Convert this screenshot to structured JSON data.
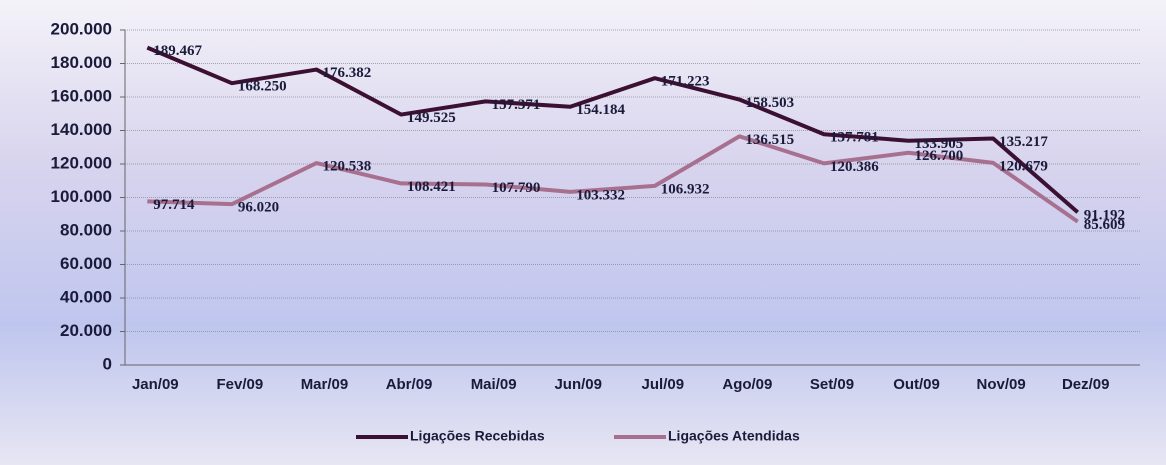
{
  "chart_data": {
    "type": "line",
    "categories": [
      "Jan/09",
      "Fev/09",
      "Mar/09",
      "Abr/09",
      "Mai/09",
      "Jun/09",
      "Jul/09",
      "Ago/09",
      "Set/09",
      "Out/09",
      "Nov/09",
      "Dez/09"
    ],
    "series": [
      {
        "name": "Ligações Recebidas",
        "color": "#3b1033",
        "values": [
          189467,
          168250,
          176382,
          149525,
          157371,
          154184,
          171223,
          158503,
          137781,
          133905,
          135217,
          91192
        ],
        "value_labels": [
          "189.467",
          "168.250",
          "176.382",
          "149.525",
          "157.371",
          "154.184",
          "171.223",
          "158.503",
          "137.781",
          "133.905",
          "135.217",
          "91.192"
        ]
      },
      {
        "name": "Ligações Atendidas",
        "color": "#a8708f",
        "values": [
          97714,
          96020,
          120538,
          108421,
          107790,
          103332,
          106932,
          136515,
          120386,
          126700,
          120679,
          85609
        ],
        "value_labels": [
          "97.714",
          "96.020",
          "120.538",
          "108.421",
          "107.790",
          "103.332",
          "106.932",
          "136.515",
          "120.386",
          "126.700",
          "120.679",
          "85.609"
        ]
      }
    ],
    "ylim": [
      0,
      200000
    ],
    "yticks": [
      0,
      {
        "value": 20000,
        "label": "20.000"
      },
      {
        "value": 40000,
        "label": "40.000"
      },
      {
        "value": 60000,
        "label": "60.000"
      },
      {
        "value": 80000,
        "label": "80.000"
      },
      {
        "value": 100000,
        "label": "100.000"
      },
      {
        "value": 120000,
        "label": "120.000"
      },
      {
        "value": 140000,
        "label": "140.000"
      },
      {
        "value": 160000,
        "label": "160.000"
      },
      {
        "value": 180000,
        "label": "180.000"
      },
      {
        "value": 200000,
        "label": "200.000"
      }
    ],
    "grid": true,
    "legend": "bottom"
  }
}
